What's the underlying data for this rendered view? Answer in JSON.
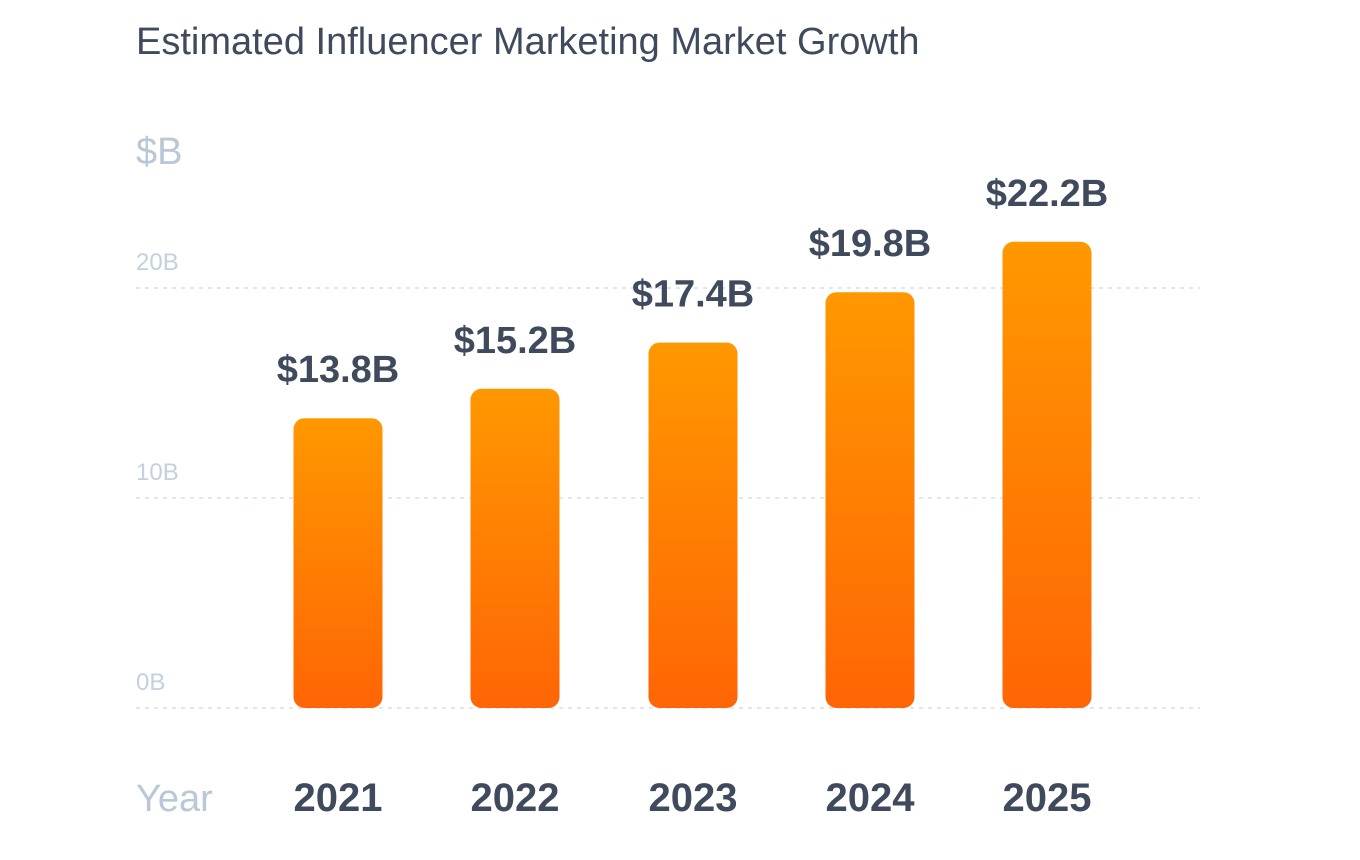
{
  "chart_data": {
    "type": "bar",
    "title": "Estimated Influencer Marketing Market Growth",
    "ylabel": "$B",
    "xlabel": "Year",
    "categories": [
      "2021",
      "2022",
      "2023",
      "2024",
      "2025"
    ],
    "values": [
      13.8,
      15.2,
      17.4,
      19.8,
      22.2
    ],
    "value_labels": [
      "$13.8B",
      "$15.2B",
      "$17.4B",
      "$19.8B",
      "$22.2B"
    ],
    "yticks": [
      {
        "value": 0,
        "label": "0B"
      },
      {
        "value": 10,
        "label": "10B"
      },
      {
        "value": 20,
        "label": "20B"
      }
    ],
    "ylim": [
      0,
      24
    ],
    "grid": true,
    "legend": "none",
    "colors": {
      "bar_top": "#ff9800",
      "bar_bottom": "#ff6505",
      "text": "#3f4a5c",
      "muted": "#b9c7d6"
    }
  }
}
